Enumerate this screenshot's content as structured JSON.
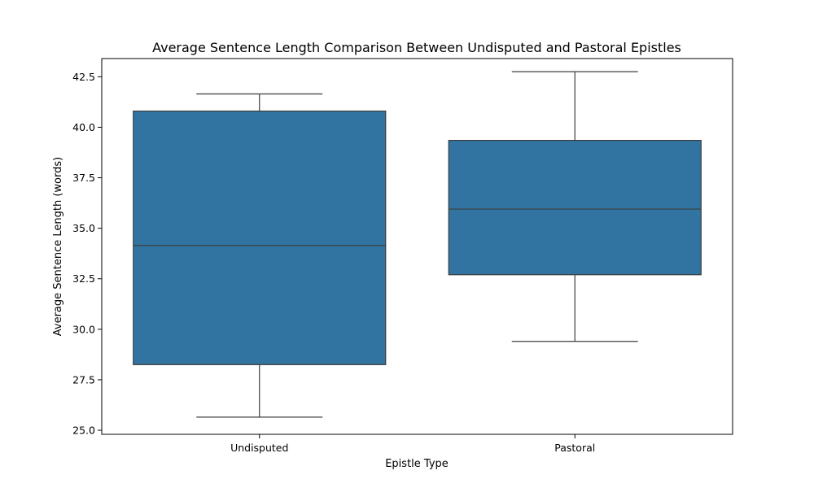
{
  "chart_data": {
    "type": "box",
    "title": "Average Sentence Length Comparison Between Undisputed and Pastoral Epistles",
    "xlabel": "Epistle Type",
    "ylabel": "Average Sentence Length (words)",
    "ylim": [
      24.8,
      43.4
    ],
    "yticks": [
      "25.0",
      "27.5",
      "30.0",
      "32.5",
      "35.0",
      "37.5",
      "40.0",
      "42.5"
    ],
    "categories": [
      "Undisputed",
      "Pastoral"
    ],
    "boxes": [
      {
        "category": "Undisputed",
        "whisker_low": 25.65,
        "q1": 28.25,
        "median": 34.15,
        "q3": 40.8,
        "whisker_high": 41.65
      },
      {
        "category": "Pastoral",
        "whisker_low": 29.4,
        "q1": 32.7,
        "median": 35.95,
        "q3": 39.35,
        "whisker_high": 42.75
      }
    ],
    "box_color": "#3274a1",
    "line_color": "#3d3d3d",
    "grid": false,
    "legend": "none"
  }
}
